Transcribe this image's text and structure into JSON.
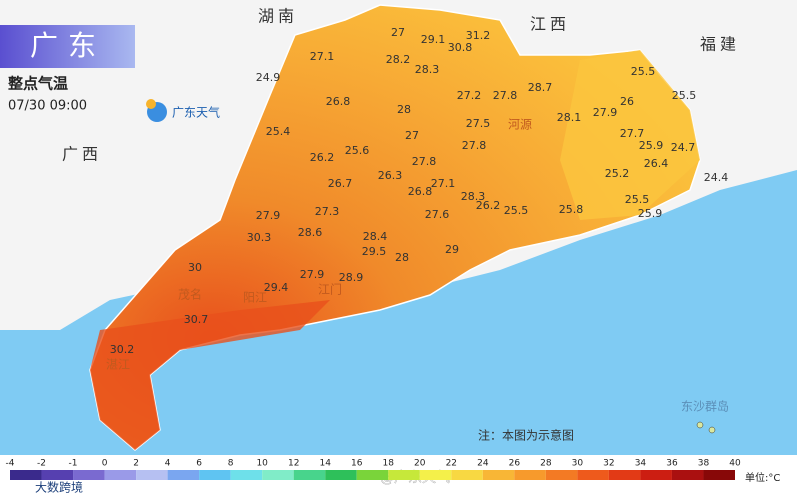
{
  "header": {
    "title": "广东",
    "subtitle": "整点气温",
    "time": "07/30  09:00",
    "logo": "广东天气"
  },
  "provinces": [
    "湖南",
    "江西",
    "福建",
    "广西"
  ],
  "cities": [
    "河源",
    "茂名",
    "阳江",
    "江门",
    "湛江",
    "东沙群岛"
  ],
  "readings": [
    27,
    29.1,
    31.2,
    30.8,
    27.1,
    28.2,
    28.3,
    24.9,
    28.7,
    25.5,
    27.2,
    27.8,
    26.8,
    28,
    26,
    25.5,
    27.9,
    28.1,
    27.5,
    25.4,
    27,
    27.7,
    27.8,
    25.9,
    24.7,
    25.6,
    26.2,
    27.8,
    26.4,
    25.2,
    26.3,
    26.7,
    27.1,
    26.8,
    28.3,
    24.4,
    25.5,
    25.9,
    27.9,
    27.3,
    25.5,
    25.8,
    26.2,
    27.6,
    30.3,
    28.6,
    28.4,
    29.5,
    28,
    29,
    30,
    27.9,
    28.9,
    29.4,
    30.7,
    30.2
  ],
  "note": "注：本图为示意图",
  "legend": {
    "unit": "单位:°C",
    "ticks": [
      -4,
      -2,
      -1,
      0,
      2,
      4,
      6,
      8,
      10,
      12,
      14,
      16,
      18,
      20,
      22,
      24,
      26,
      28,
      30,
      32,
      34,
      36,
      38,
      40
    ],
    "colors": [
      "#3a2a8c",
      "#5640b0",
      "#7a6ad0",
      "#9a9ae8",
      "#b6c0f2",
      "#7aa6f0",
      "#5fc4f2",
      "#6ee0ea",
      "#80ecc8",
      "#48d48c",
      "#2ec05a",
      "#7ad43a",
      "#c6e83a",
      "#f4f04a",
      "#f8d842",
      "#f8b636",
      "#f79a2c",
      "#f37a24",
      "#ee5a1c",
      "#e23a16",
      "#cc1e12",
      "#aa1010",
      "#880808"
    ]
  },
  "footer": {
    "brand": "大数跨境",
    "watermark": "@广东天气"
  }
}
